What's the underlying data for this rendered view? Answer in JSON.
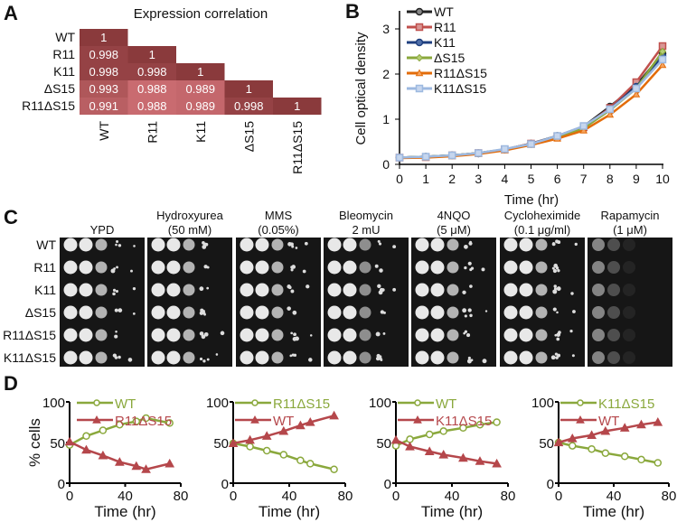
{
  "panel_labels": {
    "a": "A",
    "b": "B",
    "c": "C",
    "d": "D"
  },
  "colors": {
    "heat_high": "#8a3a3c",
    "heat_low": "#c96b70",
    "green": "#8aa83c",
    "red": "#b5474b",
    "WT": "#222222",
    "R11": "#c0504d",
    "K11": "#1f3f7f",
    "ΔS15": "#8aa83c",
    "R11ΔS15": "#e36c0a",
    "K11ΔS15": "#9db9e0"
  },
  "spot_assay": {
    "strains": [
      "WT",
      "R11",
      "K11",
      "ΔS15",
      "R11ΔS15",
      "K11ΔS15"
    ],
    "conditions": [
      {
        "name": "YPD",
        "conc": ""
      },
      {
        "name": "Hydroxyurea",
        "conc": "(50 mM)"
      },
      {
        "name": "MMS",
        "conc": "(0.05%)"
      },
      {
        "name": "Bleomycin",
        "conc": "2 mU"
      },
      {
        "name": "4NQO",
        "conc": "(5 μM)"
      },
      {
        "name": "Cycloheximide",
        "conc": "(0.1 μg/ml)"
      },
      {
        "name": "Rapamycin",
        "conc": "(1 μM)"
      }
    ]
  },
  "chart_data": [
    {
      "type": "heatmap",
      "title": "Expression correlation",
      "rows": [
        "WT",
        "R11",
        "K11",
        "ΔS15",
        "R11ΔS15"
      ],
      "columns": [
        "WT",
        "R11",
        "K11",
        "ΔS15",
        "R11ΔS15"
      ],
      "values": [
        [
          "1"
        ],
        [
          "0.998",
          "1"
        ],
        [
          "0.998",
          "0.998",
          "1"
        ],
        [
          "0.993",
          "0.988",
          "0.989",
          "1"
        ],
        [
          "0.991",
          "0.988",
          "0.989",
          "0.998",
          "1"
        ]
      ]
    },
    {
      "type": "line",
      "xlabel": "Time (hr)",
      "ylabel": "Cell optical density",
      "xlim": [
        0,
        10
      ],
      "ylim": [
        0,
        3.3
      ],
      "xticks": [
        "0",
        "1",
        "2",
        "3",
        "4",
        "5",
        "6",
        "7",
        "8",
        "9",
        "10"
      ],
      "yticks": [
        "0",
        "1",
        "2",
        "3"
      ],
      "legend": "top-left",
      "x": [
        0,
        1,
        2,
        3,
        4,
        5,
        6,
        7,
        8,
        9,
        10
      ],
      "series": [
        {
          "name": "WT",
          "marker": "circle",
          "values": [
            0.15,
            0.17,
            0.2,
            0.25,
            0.33,
            0.46,
            0.63,
            0.84,
            1.28,
            1.75,
            2.45
          ]
        },
        {
          "name": "R11",
          "marker": "square",
          "values": [
            0.15,
            0.16,
            0.2,
            0.25,
            0.33,
            0.46,
            0.62,
            0.82,
            1.25,
            1.82,
            2.62
          ]
        },
        {
          "name": "K11",
          "marker": "circle",
          "values": [
            0.15,
            0.17,
            0.2,
            0.24,
            0.33,
            0.45,
            0.63,
            0.83,
            1.22,
            1.72,
            2.4
          ]
        },
        {
          "name": "ΔS15",
          "marker": "diamond",
          "values": [
            0.15,
            0.17,
            0.2,
            0.25,
            0.33,
            0.45,
            0.6,
            0.8,
            1.2,
            1.68,
            2.5
          ]
        },
        {
          "name": "R11ΔS15",
          "marker": "triangle",
          "values": [
            0.14,
            0.15,
            0.18,
            0.23,
            0.31,
            0.43,
            0.57,
            0.75,
            1.1,
            1.55,
            2.2
          ]
        },
        {
          "name": "K11ΔS15",
          "marker": "square",
          "values": [
            0.15,
            0.17,
            0.2,
            0.25,
            0.34,
            0.45,
            0.63,
            0.85,
            1.22,
            1.68,
            2.32
          ]
        }
      ]
    },
    {
      "type": "line",
      "xlabel": "Time (hr)",
      "ylabel": "% cells",
      "xlim": [
        0,
        80
      ],
      "ylim": [
        0,
        100
      ],
      "xticks": [
        "0",
        "40",
        "80"
      ],
      "yticks": [
        "0",
        "50",
        "100"
      ],
      "legend": "top-left",
      "series": [
        {
          "name": "WT",
          "color": "green",
          "x": [
            0,
            12,
            24,
            36,
            48,
            55,
            72
          ],
          "values": [
            47,
            58,
            65,
            72,
            76,
            80,
            74
          ]
        },
        {
          "name": "R11ΔS15",
          "color": "red",
          "x": [
            0,
            12,
            24,
            36,
            48,
            55,
            72
          ],
          "values": [
            51,
            41,
            34,
            26,
            21,
            17,
            24
          ]
        }
      ]
    },
    {
      "type": "line",
      "xlabel": "Time (hr)",
      "ylabel": "",
      "xlim": [
        0,
        80
      ],
      "ylim": [
        0,
        100
      ],
      "xticks": [
        "0",
        "40",
        "80"
      ],
      "yticks": [
        "0",
        "50",
        "100"
      ],
      "legend": "top-left",
      "series": [
        {
          "name": "R11ΔS15",
          "color": "green",
          "x": [
            0,
            12,
            24,
            36,
            48,
            55,
            72
          ],
          "values": [
            49,
            45,
            40,
            35,
            28,
            24,
            17
          ]
        },
        {
          "name": "WT",
          "color": "red",
          "x": [
            0,
            12,
            24,
            36,
            48,
            55,
            72
          ],
          "values": [
            49,
            53,
            58,
            64,
            71,
            75,
            83
          ]
        }
      ]
    },
    {
      "type": "line",
      "xlabel": "Time (hr)",
      "ylabel": "",
      "xlim": [
        0,
        80
      ],
      "ylim": [
        0,
        100
      ],
      "xticks": [
        "0",
        "40",
        "80"
      ],
      "yticks": [
        "0",
        "50",
        "100"
      ],
      "legend": "top-left",
      "series": [
        {
          "name": "WT",
          "color": "green",
          "x": [
            0,
            10,
            24,
            34,
            48,
            60,
            72
          ],
          "values": [
            46,
            54,
            60,
            64,
            68,
            72,
            75
          ]
        },
        {
          "name": "K11ΔS15",
          "color": "red",
          "x": [
            0,
            10,
            24,
            34,
            48,
            60,
            72
          ],
          "values": [
            53,
            45,
            39,
            35,
            31,
            27,
            24
          ]
        }
      ]
    },
    {
      "type": "line",
      "xlabel": "Time (hr)",
      "ylabel": "",
      "xlim": [
        0,
        80
      ],
      "ylim": [
        0,
        100
      ],
      "xticks": [
        "0",
        "40",
        "80"
      ],
      "yticks": [
        "0",
        "50",
        "100"
      ],
      "legend": "top-left",
      "series": [
        {
          "name": "K11ΔS15",
          "color": "green",
          "x": [
            0,
            10,
            24,
            34,
            48,
            60,
            72
          ],
          "values": [
            50,
            46,
            42,
            37,
            33,
            29,
            25
          ]
        },
        {
          "name": "WT",
          "color": "red",
          "x": [
            0,
            10,
            24,
            34,
            48,
            60,
            72
          ],
          "values": [
            50,
            55,
            59,
            64,
            68,
            72,
            75
          ]
        }
      ]
    }
  ]
}
